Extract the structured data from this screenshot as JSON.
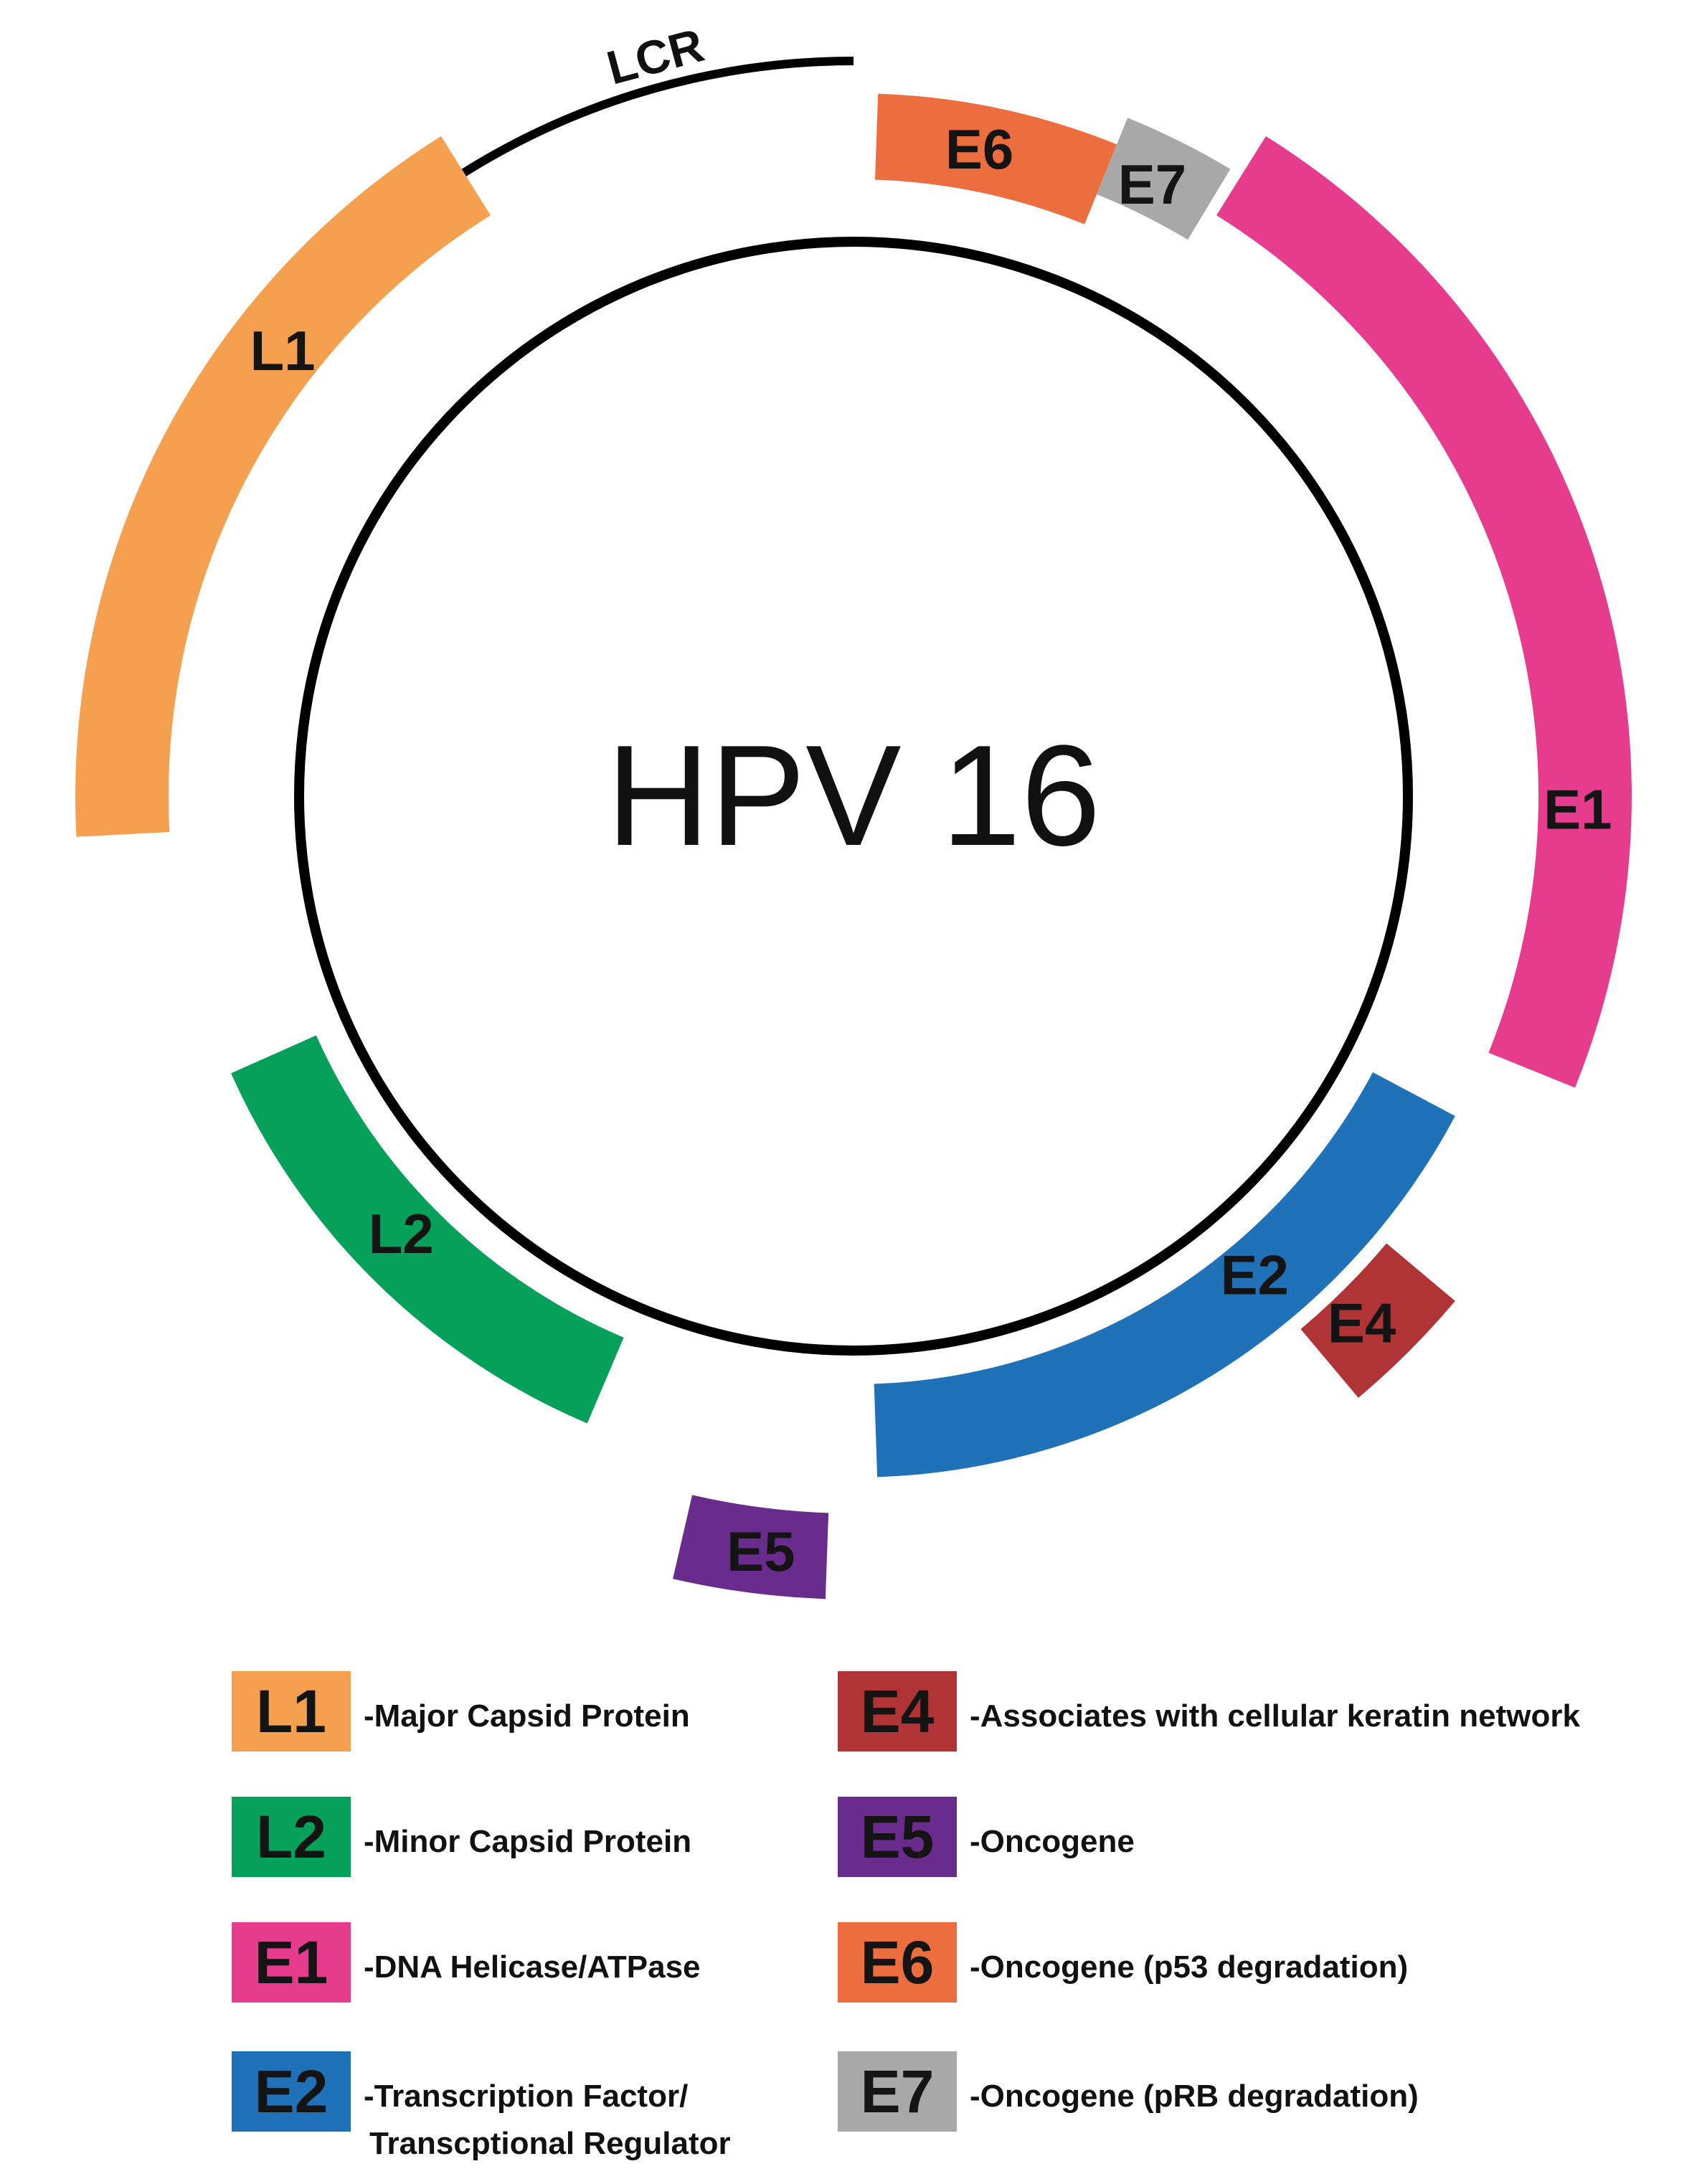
{
  "title": "HPV 16",
  "lcr_label": "LCR",
  "segments": [
    {
      "id": "L1",
      "label": "L1",
      "color": "#F5A04E"
    },
    {
      "id": "L2",
      "label": "L2",
      "color": "#05A05A"
    },
    {
      "id": "E1",
      "label": "E1",
      "color": "#E73B8D"
    },
    {
      "id": "E2",
      "label": "E2",
      "color": "#1F72B8"
    },
    {
      "id": "E4",
      "label": "E4",
      "color": "#B03435"
    },
    {
      "id": "E5",
      "label": "E5",
      "color": "#6A2C8C"
    },
    {
      "id": "E6",
      "label": "E6",
      "color": "#EC6E3F"
    },
    {
      "id": "E7",
      "label": "E7",
      "color": "#A8A8A8"
    }
  ],
  "legend": [
    {
      "id": "L1",
      "label": "L1",
      "color": "#F5A04E",
      "description": "-Major Capsid Protein",
      "description2": ""
    },
    {
      "id": "L2",
      "label": "L2",
      "color": "#05A05A",
      "description": "-Minor Capsid Protein",
      "description2": ""
    },
    {
      "id": "E1",
      "label": "E1",
      "color": "#E73B8D",
      "description": "-DNA Helicase/ATPase",
      "description2": ""
    },
    {
      "id": "E2",
      "label": "E2",
      "color": "#1F72B8",
      "description": "-Transcription Factor/",
      "description2": "Transcptional Regulator"
    },
    {
      "id": "E4",
      "label": "E4",
      "color": "#B03435",
      "description": "-Associates with cellular keratin network",
      "description2": ""
    },
    {
      "id": "E5",
      "label": "E5",
      "color": "#6A2C8C",
      "description": "-Oncogene",
      "description2": ""
    },
    {
      "id": "E6",
      "label": "E6",
      "color": "#EC6E3F",
      "description": "-Oncogene (p53 degradation)",
      "description2": ""
    },
    {
      "id": "E7",
      "label": "E7",
      "color": "#A8A8A8",
      "description": "-Oncogene (pRB degradation)",
      "description2": ""
    }
  ]
}
